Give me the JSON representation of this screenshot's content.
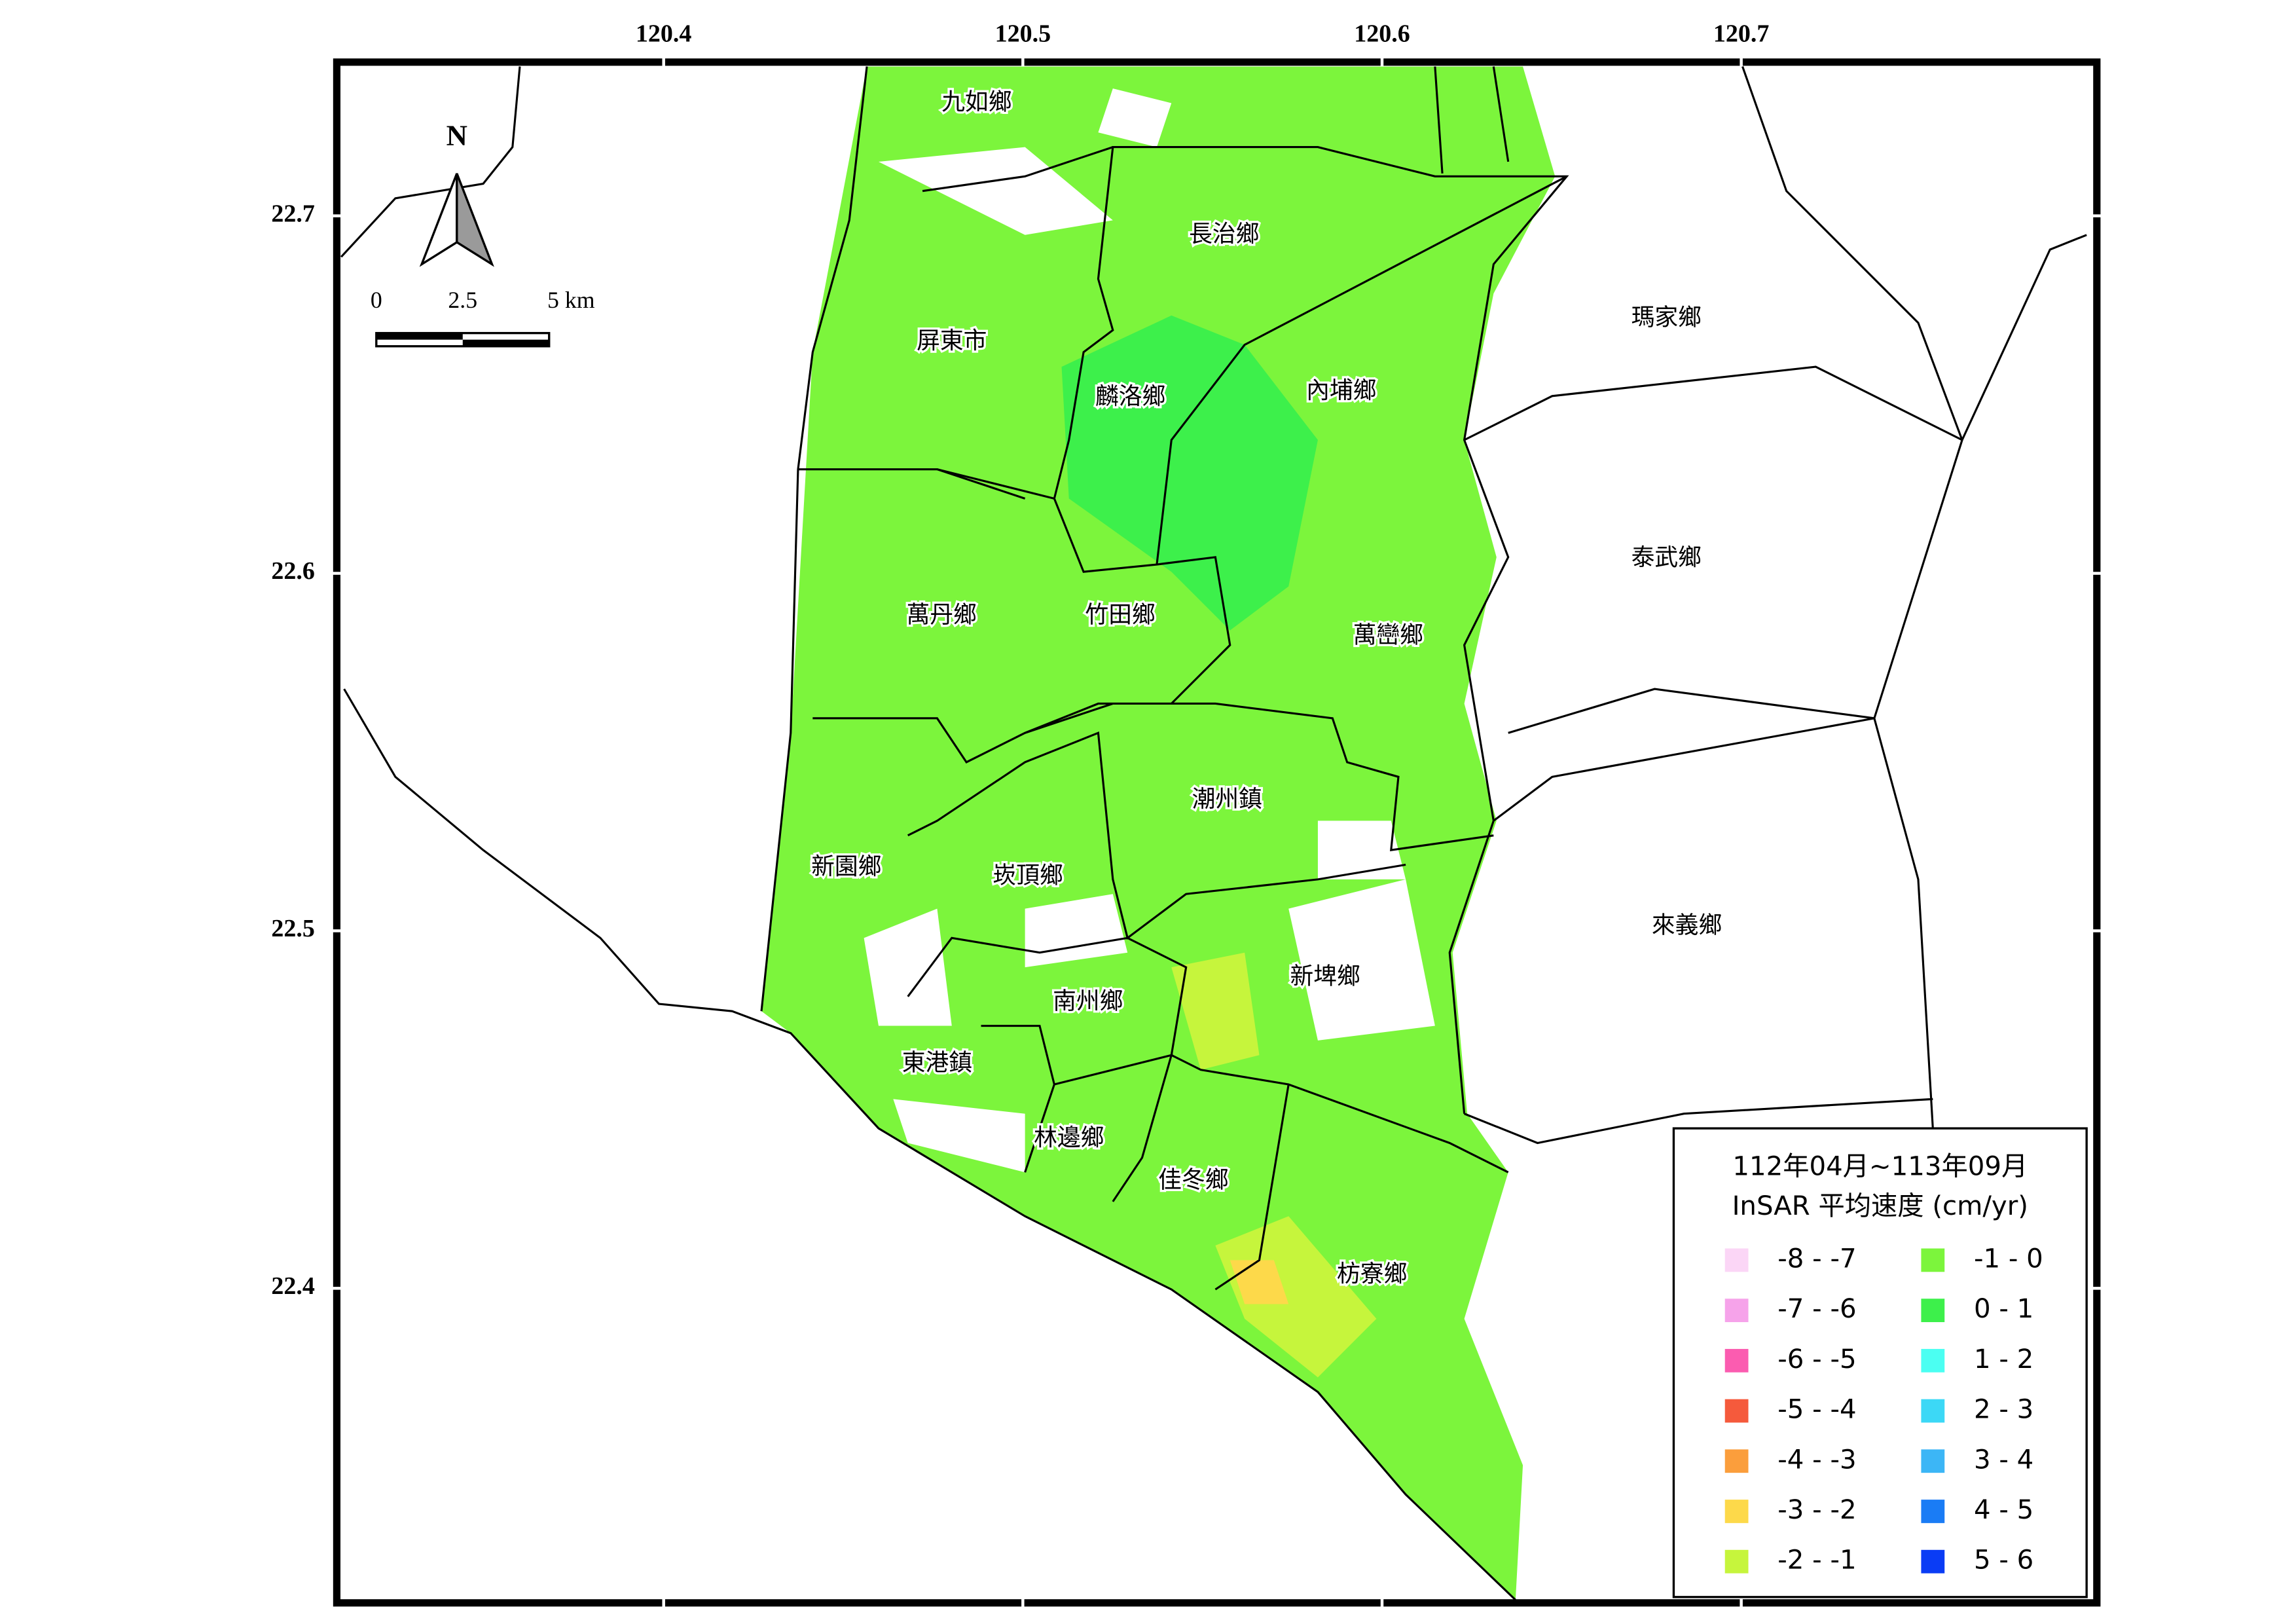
{
  "map": {
    "xlim": [
      120.309,
      120.799
    ],
    "ylim": [
      22.312,
      22.743
    ],
    "xticks": [
      120.4,
      120.5,
      120.6,
      120.7
    ],
    "yticks": [
      22.7,
      22.6,
      22.5,
      22.4
    ],
    "north": "N",
    "scale_labels": [
      "0",
      "2.5",
      "5 km"
    ],
    "townships": [
      "九如鄉",
      "長治鄉",
      "屏東市",
      "麟洛鄉",
      "內埔鄉",
      "瑪家鄉",
      "泰武鄉",
      "萬丹鄉",
      "竹田鄉",
      "萬巒鄉",
      "潮州鎮",
      "新園鄉",
      "崁頂鄉",
      "來義鄉",
      "新埤鄉",
      "南州鄉",
      "東港鎮",
      "林邊鄉",
      "佳冬鄉",
      "枋寮鄉"
    ],
    "legend": {
      "title": [
        "112年04月~113年09月",
        "InSAR 平均速度 (cm/yr)"
      ],
      "items": [
        {
          "label": "-8 - -7",
          "color": "#fbd6f6"
        },
        {
          "label": "-7 - -6",
          "color": "#f6a3ea"
        },
        {
          "label": "-6 - -5",
          "color": "#fb5cb0"
        },
        {
          "label": "-5 - -4",
          "color": "#f55a3c"
        },
        {
          "label": "-4 - -3",
          "color": "#fb9e3c"
        },
        {
          "label": "-3 - -2",
          "color": "#fdd94a"
        },
        {
          "label": "-2 - -1",
          "color": "#c6f53c"
        },
        {
          "label": "-1 - 0",
          "color": "#7cf53c"
        },
        {
          "label": "0 - 1",
          "color": "#3df04b"
        },
        {
          "label": "1 - 2",
          "color": "#4bfff2"
        },
        {
          "label": "2 - 3",
          "color": "#3cd8f6"
        },
        {
          "label": "3 - 4",
          "color": "#3cb6f6"
        },
        {
          "label": "4 - 5",
          "color": "#1a7cf5"
        },
        {
          "label": "5 - 6",
          "color": "#0a3cf5"
        }
      ]
    }
  }
}
